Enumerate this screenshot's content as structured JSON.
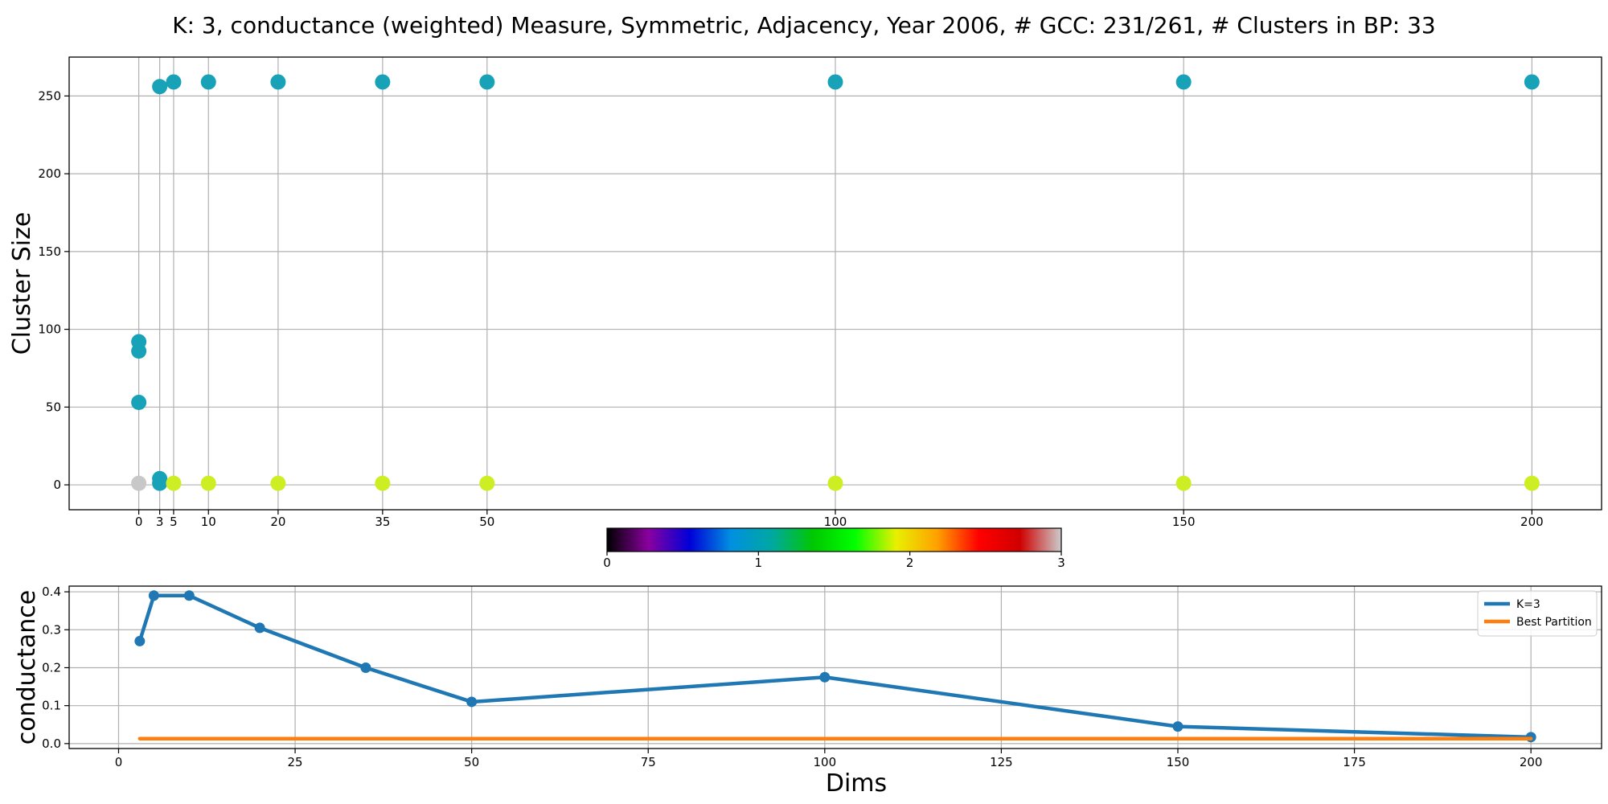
{
  "title": "K: 3, conductance (weighted) Measure, Symmetric, Adjacency, Year 2006, # GCC: 231/261, # Clusters in BP: 33",
  "chart_data": [
    {
      "type": "scatter",
      "ylabel": "Cluster Size",
      "xlabel": "",
      "x_ticks": [
        0,
        3,
        5,
        10,
        20,
        35,
        50,
        100,
        150,
        200
      ],
      "xlim": [
        -10,
        210
      ],
      "ylim": [
        -16,
        275
      ],
      "y_ticks": [
        0,
        50,
        100,
        150,
        200,
        250
      ],
      "grid": true,
      "colormap": {
        "range": [
          0,
          3
        ],
        "ticks": [
          0,
          1,
          2,
          3
        ],
        "stops": [
          "#000000",
          "#8a009f",
          "#0000d8",
          "#0090e0",
          "#00a8a0",
          "#00c800",
          "#00ff00",
          "#e8f000",
          "#ffa000",
          "#ff0000",
          "#d00000",
          "#cccccc"
        ]
      },
      "points": [
        {
          "x": 0,
          "y": 92,
          "color_value": 1.05
        },
        {
          "x": 0,
          "y": 86,
          "color_value": 1.05
        },
        {
          "x": 0,
          "y": 53,
          "color_value": 1.05
        },
        {
          "x": 0,
          "y": 1,
          "color_value": 3.0
        },
        {
          "x": 3,
          "y": 256,
          "color_value": 1.05
        },
        {
          "x": 3,
          "y": 4,
          "color_value": 1.05
        },
        {
          "x": 3,
          "y": 1,
          "color_value": 1.05
        },
        {
          "x": 5,
          "y": 259,
          "color_value": 1.05
        },
        {
          "x": 5,
          "y": 1,
          "color_value": 2.0
        },
        {
          "x": 10,
          "y": 259,
          "color_value": 1.05
        },
        {
          "x": 10,
          "y": 1,
          "color_value": 2.0
        },
        {
          "x": 20,
          "y": 259,
          "color_value": 1.05
        },
        {
          "x": 20,
          "y": 1,
          "color_value": 2.0
        },
        {
          "x": 35,
          "y": 259,
          "color_value": 1.05
        },
        {
          "x": 35,
          "y": 1,
          "color_value": 2.0
        },
        {
          "x": 50,
          "y": 259,
          "color_value": 1.05
        },
        {
          "x": 50,
          "y": 1,
          "color_value": 2.0
        },
        {
          "x": 100,
          "y": 259,
          "color_value": 1.05
        },
        {
          "x": 100,
          "y": 1,
          "color_value": 2.0
        },
        {
          "x": 150,
          "y": 259,
          "color_value": 1.05
        },
        {
          "x": 150,
          "y": 1,
          "color_value": 2.0
        },
        {
          "x": 200,
          "y": 259,
          "color_value": 1.05
        },
        {
          "x": 200,
          "y": 1,
          "color_value": 2.0
        }
      ],
      "point_colors": {
        "teal": "#17a2b8",
        "yellow_green": "#ccee22",
        "gray": "#c8c8c8"
      }
    },
    {
      "type": "line",
      "xlabel": "Dims",
      "ylabel": "conductance",
      "xlim": [
        -7,
        210
      ],
      "ylim": [
        -0.013,
        0.415
      ],
      "x_ticks": [
        0,
        25,
        50,
        75,
        100,
        125,
        150,
        175,
        200
      ],
      "y_ticks": [
        0.0,
        0.1,
        0.2,
        0.3,
        0.4
      ],
      "y_tick_labels": [
        "0.0",
        "0.1",
        "0.2",
        "0.3",
        "0.4"
      ],
      "grid": true,
      "legend_position": "top-right",
      "series": [
        {
          "name": "K=3",
          "color": "#1f77b4",
          "x": [
            3,
            5,
            10,
            20,
            35,
            50,
            100,
            150,
            200
          ],
          "y": [
            0.27,
            0.39,
            0.39,
            0.305,
            0.2,
            0.11,
            0.175,
            0.045,
            0.017
          ],
          "markers": true
        },
        {
          "name": "Best Partition",
          "color": "#ff7f0e",
          "x": [
            3,
            200
          ],
          "y": [
            0.013,
            0.013
          ],
          "markers": false
        }
      ]
    }
  ]
}
